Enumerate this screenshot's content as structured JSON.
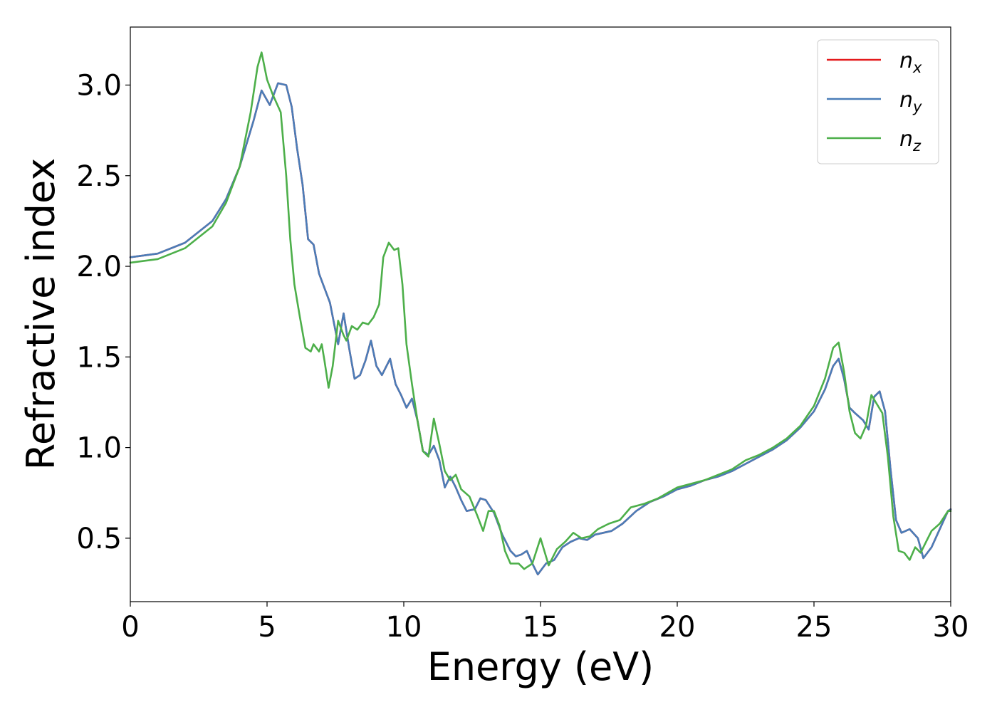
{
  "chart_data": {
    "type": "line",
    "xlabel": "Energy (eV)",
    "ylabel": "Refractive index",
    "xlim": [
      0,
      30
    ],
    "ylim": [
      0.15,
      3.32
    ],
    "xticks": [
      0,
      5,
      10,
      15,
      20,
      25,
      30
    ],
    "xtick_labels": [
      "0",
      "5",
      "10",
      "15",
      "20",
      "25",
      "30"
    ],
    "yticks": [
      0.5,
      1.0,
      1.5,
      2.0,
      2.5,
      3.0
    ],
    "ytick_labels": [
      "0.5",
      "1.0",
      "1.5",
      "2.0",
      "2.5",
      "3.0"
    ],
    "grid": false,
    "legend_position": "top-right",
    "series": [
      {
        "name": "n_x",
        "base": "n",
        "sub": "x",
        "color": "#e41a1c",
        "points": [
          [
            0,
            2.05
          ],
          [
            1,
            2.07
          ],
          [
            2,
            2.13
          ],
          [
            3,
            2.25
          ],
          [
            3.5,
            2.37
          ],
          [
            4,
            2.55
          ],
          [
            4.5,
            2.8
          ],
          [
            4.8,
            2.97
          ],
          [
            5.1,
            2.89
          ],
          [
            5.4,
            3.01
          ],
          [
            5.7,
            3.0
          ],
          [
            5.9,
            2.88
          ],
          [
            6.1,
            2.65
          ],
          [
            6.3,
            2.45
          ],
          [
            6.5,
            2.15
          ],
          [
            6.7,
            2.12
          ],
          [
            6.9,
            1.96
          ],
          [
            7.1,
            1.88
          ],
          [
            7.3,
            1.8
          ],
          [
            7.6,
            1.57
          ],
          [
            7.8,
            1.74
          ],
          [
            8.0,
            1.55
          ],
          [
            8.2,
            1.38
          ],
          [
            8.4,
            1.4
          ],
          [
            8.6,
            1.48
          ],
          [
            8.8,
            1.59
          ],
          [
            9.0,
            1.45
          ],
          [
            9.2,
            1.4
          ],
          [
            9.5,
            1.49
          ],
          [
            9.7,
            1.35
          ],
          [
            9.9,
            1.29
          ],
          [
            10.1,
            1.22
          ],
          [
            10.3,
            1.27
          ],
          [
            10.5,
            1.15
          ],
          [
            10.7,
            0.98
          ],
          [
            10.9,
            0.96
          ],
          [
            11.1,
            1.01
          ],
          [
            11.3,
            0.93
          ],
          [
            11.5,
            0.78
          ],
          [
            11.7,
            0.84
          ],
          [
            11.9,
            0.78
          ],
          [
            12.1,
            0.71
          ],
          [
            12.3,
            0.65
          ],
          [
            12.6,
            0.66
          ],
          [
            12.8,
            0.72
          ],
          [
            13.0,
            0.71
          ],
          [
            13.3,
            0.64
          ],
          [
            13.6,
            0.52
          ],
          [
            13.9,
            0.43
          ],
          [
            14.1,
            0.4
          ],
          [
            14.3,
            0.41
          ],
          [
            14.5,
            0.43
          ],
          [
            14.7,
            0.36
          ],
          [
            14.9,
            0.3
          ],
          [
            15.2,
            0.36
          ],
          [
            15.5,
            0.38
          ],
          [
            15.8,
            0.45
          ],
          [
            16.1,
            0.48
          ],
          [
            16.4,
            0.5
          ],
          [
            16.7,
            0.49
          ],
          [
            17.0,
            0.52
          ],
          [
            17.3,
            0.53
          ],
          [
            17.6,
            0.54
          ],
          [
            18.0,
            0.58
          ],
          [
            18.5,
            0.65
          ],
          [
            19.0,
            0.7
          ],
          [
            19.5,
            0.73
          ],
          [
            20,
            0.77
          ],
          [
            20.5,
            0.79
          ],
          [
            21,
            0.82
          ],
          [
            21.5,
            0.84
          ],
          [
            22,
            0.87
          ],
          [
            22.5,
            0.91
          ],
          [
            23,
            0.95
          ],
          [
            23.5,
            0.99
          ],
          [
            24,
            1.04
          ],
          [
            24.5,
            1.11
          ],
          [
            25,
            1.2
          ],
          [
            25.4,
            1.32
          ],
          [
            25.7,
            1.45
          ],
          [
            25.9,
            1.49
          ],
          [
            26.1,
            1.38
          ],
          [
            26.3,
            1.22
          ],
          [
            26.5,
            1.19
          ],
          [
            26.8,
            1.15
          ],
          [
            27.0,
            1.1
          ],
          [
            27.2,
            1.28
          ],
          [
            27.4,
            1.31
          ],
          [
            27.6,
            1.2
          ],
          [
            27.8,
            0.88
          ],
          [
            28.0,
            0.6
          ],
          [
            28.2,
            0.53
          ],
          [
            28.5,
            0.55
          ],
          [
            28.8,
            0.5
          ],
          [
            29.0,
            0.39
          ],
          [
            29.3,
            0.45
          ],
          [
            29.6,
            0.55
          ],
          [
            29.9,
            0.65
          ],
          [
            30,
            0.66
          ]
        ]
      },
      {
        "name": "n_y",
        "base": "n",
        "sub": "y",
        "color": "#4a7db8",
        "points": [
          [
            0,
            2.05
          ],
          [
            1,
            2.07
          ],
          [
            2,
            2.13
          ],
          [
            3,
            2.25
          ],
          [
            3.5,
            2.37
          ],
          [
            4,
            2.55
          ],
          [
            4.5,
            2.8
          ],
          [
            4.8,
            2.97
          ],
          [
            5.1,
            2.89
          ],
          [
            5.4,
            3.01
          ],
          [
            5.7,
            3.0
          ],
          [
            5.9,
            2.88
          ],
          [
            6.1,
            2.65
          ],
          [
            6.3,
            2.45
          ],
          [
            6.5,
            2.15
          ],
          [
            6.7,
            2.12
          ],
          [
            6.9,
            1.96
          ],
          [
            7.1,
            1.88
          ],
          [
            7.3,
            1.8
          ],
          [
            7.6,
            1.57
          ],
          [
            7.8,
            1.74
          ],
          [
            8.0,
            1.55
          ],
          [
            8.2,
            1.38
          ],
          [
            8.4,
            1.4
          ],
          [
            8.6,
            1.48
          ],
          [
            8.8,
            1.59
          ],
          [
            9.0,
            1.45
          ],
          [
            9.2,
            1.4
          ],
          [
            9.5,
            1.49
          ],
          [
            9.7,
            1.35
          ],
          [
            9.9,
            1.29
          ],
          [
            10.1,
            1.22
          ],
          [
            10.3,
            1.27
          ],
          [
            10.5,
            1.15
          ],
          [
            10.7,
            0.98
          ],
          [
            10.9,
            0.96
          ],
          [
            11.1,
            1.01
          ],
          [
            11.3,
            0.93
          ],
          [
            11.5,
            0.78
          ],
          [
            11.7,
            0.84
          ],
          [
            11.9,
            0.78
          ],
          [
            12.1,
            0.71
          ],
          [
            12.3,
            0.65
          ],
          [
            12.6,
            0.66
          ],
          [
            12.8,
            0.72
          ],
          [
            13.0,
            0.71
          ],
          [
            13.3,
            0.64
          ],
          [
            13.6,
            0.52
          ],
          [
            13.9,
            0.43
          ],
          [
            14.1,
            0.4
          ],
          [
            14.3,
            0.41
          ],
          [
            14.5,
            0.43
          ],
          [
            14.7,
            0.36
          ],
          [
            14.9,
            0.3
          ],
          [
            15.2,
            0.36
          ],
          [
            15.5,
            0.38
          ],
          [
            15.8,
            0.45
          ],
          [
            16.1,
            0.48
          ],
          [
            16.4,
            0.5
          ],
          [
            16.7,
            0.49
          ],
          [
            17.0,
            0.52
          ],
          [
            17.3,
            0.53
          ],
          [
            17.6,
            0.54
          ],
          [
            18.0,
            0.58
          ],
          [
            18.5,
            0.65
          ],
          [
            19.0,
            0.7
          ],
          [
            19.5,
            0.73
          ],
          [
            20,
            0.77
          ],
          [
            20.5,
            0.79
          ],
          [
            21,
            0.82
          ],
          [
            21.5,
            0.84
          ],
          [
            22,
            0.87
          ],
          [
            22.5,
            0.91
          ],
          [
            23,
            0.95
          ],
          [
            23.5,
            0.99
          ],
          [
            24,
            1.04
          ],
          [
            24.5,
            1.11
          ],
          [
            25,
            1.2
          ],
          [
            25.4,
            1.32
          ],
          [
            25.7,
            1.45
          ],
          [
            25.9,
            1.49
          ],
          [
            26.1,
            1.38
          ],
          [
            26.3,
            1.22
          ],
          [
            26.5,
            1.19
          ],
          [
            26.8,
            1.15
          ],
          [
            27.0,
            1.1
          ],
          [
            27.2,
            1.28
          ],
          [
            27.4,
            1.31
          ],
          [
            27.6,
            1.2
          ],
          [
            27.8,
            0.88
          ],
          [
            28.0,
            0.6
          ],
          [
            28.2,
            0.53
          ],
          [
            28.5,
            0.55
          ],
          [
            28.8,
            0.5
          ],
          [
            29.0,
            0.39
          ],
          [
            29.3,
            0.45
          ],
          [
            29.6,
            0.55
          ],
          [
            29.9,
            0.65
          ],
          [
            30,
            0.66
          ]
        ]
      },
      {
        "name": "n_z",
        "base": "n",
        "sub": "z",
        "color": "#4daf4a",
        "points": [
          [
            0,
            2.02
          ],
          [
            1,
            2.04
          ],
          [
            2,
            2.1
          ],
          [
            3,
            2.22
          ],
          [
            3.5,
            2.35
          ],
          [
            4,
            2.55
          ],
          [
            4.4,
            2.85
          ],
          [
            4.65,
            3.1
          ],
          [
            4.8,
            3.18
          ],
          [
            5.0,
            3.03
          ],
          [
            5.2,
            2.95
          ],
          [
            5.5,
            2.85
          ],
          [
            5.7,
            2.5
          ],
          [
            5.85,
            2.15
          ],
          [
            6.0,
            1.9
          ],
          [
            6.2,
            1.72
          ],
          [
            6.4,
            1.55
          ],
          [
            6.6,
            1.53
          ],
          [
            6.7,
            1.57
          ],
          [
            6.9,
            1.53
          ],
          [
            7.0,
            1.57
          ],
          [
            7.1,
            1.48
          ],
          [
            7.25,
            1.33
          ],
          [
            7.4,
            1.45
          ],
          [
            7.6,
            1.7
          ],
          [
            7.8,
            1.62
          ],
          [
            7.9,
            1.59
          ],
          [
            8.1,
            1.67
          ],
          [
            8.3,
            1.65
          ],
          [
            8.5,
            1.69
          ],
          [
            8.7,
            1.68
          ],
          [
            8.9,
            1.72
          ],
          [
            9.1,
            1.79
          ],
          [
            9.25,
            2.05
          ],
          [
            9.45,
            2.13
          ],
          [
            9.65,
            2.09
          ],
          [
            9.8,
            2.1
          ],
          [
            9.95,
            1.9
          ],
          [
            10.1,
            1.57
          ],
          [
            10.3,
            1.35
          ],
          [
            10.5,
            1.15
          ],
          [
            10.7,
            0.98
          ],
          [
            10.9,
            0.95
          ],
          [
            11.1,
            1.16
          ],
          [
            11.3,
            1.02
          ],
          [
            11.5,
            0.87
          ],
          [
            11.7,
            0.82
          ],
          [
            11.9,
            0.85
          ],
          [
            12.1,
            0.77
          ],
          [
            12.4,
            0.73
          ],
          [
            12.7,
            0.62
          ],
          [
            12.9,
            0.54
          ],
          [
            13.1,
            0.65
          ],
          [
            13.3,
            0.65
          ],
          [
            13.5,
            0.57
          ],
          [
            13.7,
            0.43
          ],
          [
            13.9,
            0.36
          ],
          [
            14.2,
            0.36
          ],
          [
            14.4,
            0.33
          ],
          [
            14.7,
            0.36
          ],
          [
            15.0,
            0.5
          ],
          [
            15.3,
            0.35
          ],
          [
            15.6,
            0.44
          ],
          [
            15.9,
            0.48
          ],
          [
            16.2,
            0.53
          ],
          [
            16.5,
            0.5
          ],
          [
            16.8,
            0.51
          ],
          [
            17.1,
            0.55
          ],
          [
            17.5,
            0.58
          ],
          [
            17.9,
            0.6
          ],
          [
            18.3,
            0.67
          ],
          [
            18.8,
            0.69
          ],
          [
            19.3,
            0.72
          ],
          [
            20,
            0.78
          ],
          [
            20.5,
            0.8
          ],
          [
            21,
            0.82
          ],
          [
            21.5,
            0.85
          ],
          [
            22,
            0.88
          ],
          [
            22.5,
            0.93
          ],
          [
            23,
            0.96
          ],
          [
            23.5,
            1.0
          ],
          [
            24,
            1.05
          ],
          [
            24.5,
            1.12
          ],
          [
            25,
            1.23
          ],
          [
            25.4,
            1.38
          ],
          [
            25.7,
            1.55
          ],
          [
            25.9,
            1.58
          ],
          [
            26.1,
            1.42
          ],
          [
            26.3,
            1.2
          ],
          [
            26.5,
            1.08
          ],
          [
            26.7,
            1.05
          ],
          [
            26.9,
            1.12
          ],
          [
            27.1,
            1.29
          ],
          [
            27.3,
            1.24
          ],
          [
            27.5,
            1.19
          ],
          [
            27.7,
            0.95
          ],
          [
            27.9,
            0.62
          ],
          [
            28.1,
            0.43
          ],
          [
            28.3,
            0.42
          ],
          [
            28.5,
            0.38
          ],
          [
            28.7,
            0.45
          ],
          [
            28.9,
            0.42
          ],
          [
            29.1,
            0.48
          ],
          [
            29.3,
            0.54
          ],
          [
            29.6,
            0.58
          ],
          [
            29.9,
            0.65
          ],
          [
            30,
            0.65
          ]
        ]
      }
    ]
  }
}
